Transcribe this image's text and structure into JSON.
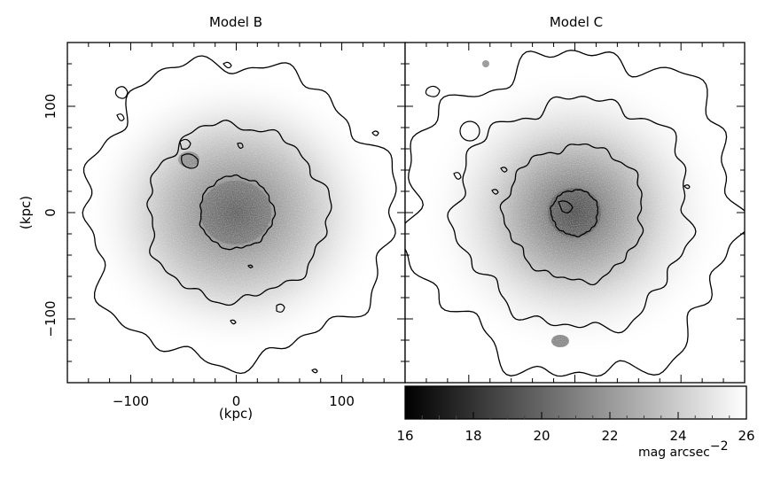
{
  "chart_data": [
    {
      "type": "heatmap",
      "title": "Model B",
      "xlabel": "(kpc)",
      "ylabel": "(kpc)",
      "xlim": [
        -160,
        160
      ],
      "ylim": [
        -160,
        160
      ],
      "xticks": [
        -100,
        0,
        100
      ],
      "xtick_labels": [
        "−100",
        "0",
        "100"
      ],
      "yticks": [
        -100,
        0,
        100
      ],
      "ytick_labels": [
        "−100",
        "0",
        "100"
      ],
      "center": [
        0,
        0
      ],
      "contours": [
        {
          "level": 1,
          "mean_radius": 35
        },
        {
          "level": 2,
          "mean_radius": 85
        },
        {
          "level": 3,
          "mean_radius": 145
        }
      ]
    },
    {
      "type": "heatmap",
      "title": "Model C",
      "xlim": [
        -160,
        160
      ],
      "ylim": [
        -160,
        160
      ],
      "center": [
        0,
        0
      ],
      "contours": [
        {
          "level": 1,
          "mean_radius": 22
        },
        {
          "level": 2,
          "mean_radius": 65
        },
        {
          "level": 3,
          "mean_radius": 110
        },
        {
          "level": 4,
          "mean_radius": 155
        }
      ]
    }
  ],
  "colorbar": {
    "range": [
      16,
      26
    ],
    "ticks": [
      16,
      18,
      20,
      22,
      24,
      26
    ],
    "tick_labels": [
      "16",
      "18",
      "20",
      "22",
      "24",
      "26"
    ],
    "label": "mag arcsec",
    "label_exponent": "−2",
    "color_low": "#000000",
    "color_high": "#ffffff"
  }
}
